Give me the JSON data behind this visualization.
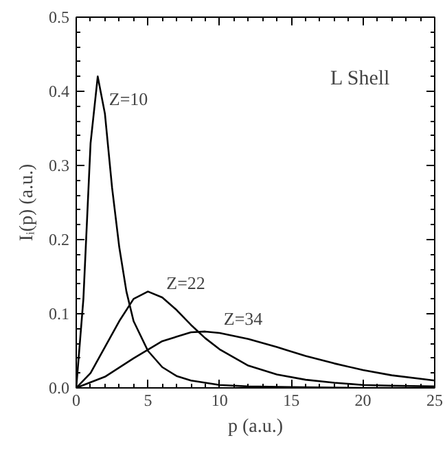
{
  "chart_data": {
    "type": "line",
    "xlabel": "p (a.u.)",
    "ylabel": "Iᵢ(p) (a.u.)",
    "xlim": [
      0,
      25
    ],
    "ylim": [
      0,
      0.5
    ],
    "xticks": [
      0,
      5,
      10,
      15,
      20,
      25
    ],
    "yticks": [
      {
        "value": 0,
        "label": "0.0"
      },
      0.1,
      0.2,
      0.3,
      0.4,
      0.5
    ],
    "grid": false,
    "marker": "none",
    "line_style": "solid",
    "series": [
      {
        "name": "Z=10",
        "color": "#000000",
        "x": [
          0,
          0.5,
          1,
          1.5,
          2,
          2.5,
          3,
          3.5,
          4,
          5,
          6,
          7,
          8,
          10,
          12,
          15,
          20,
          25
        ],
        "values": [
          0,
          0.12,
          0.33,
          0.42,
          0.37,
          0.27,
          0.19,
          0.13,
          0.09,
          0.05,
          0.028,
          0.016,
          0.01,
          0.004,
          0.002,
          0.001,
          0,
          0
        ]
      },
      {
        "name": "Z=22",
        "color": "#000000",
        "x": [
          0,
          1,
          2,
          3,
          4,
          5,
          6,
          7,
          8,
          9,
          10,
          12,
          14,
          16,
          18,
          20,
          22,
          25
        ],
        "values": [
          0,
          0.02,
          0.055,
          0.09,
          0.12,
          0.13,
          0.122,
          0.105,
          0.085,
          0.067,
          0.052,
          0.03,
          0.018,
          0.011,
          0.007,
          0.004,
          0.003,
          0.002
        ]
      },
      {
        "name": "Z=34",
        "color": "#000000",
        "x": [
          0,
          2,
          4,
          6,
          8,
          9,
          10,
          12,
          14,
          16,
          18,
          20,
          22,
          25
        ],
        "values": [
          0,
          0.015,
          0.04,
          0.063,
          0.075,
          0.076,
          0.074,
          0.066,
          0.055,
          0.043,
          0.033,
          0.024,
          0.017,
          0.01
        ]
      }
    ],
    "annotations": [
      "L  Shell"
    ]
  }
}
